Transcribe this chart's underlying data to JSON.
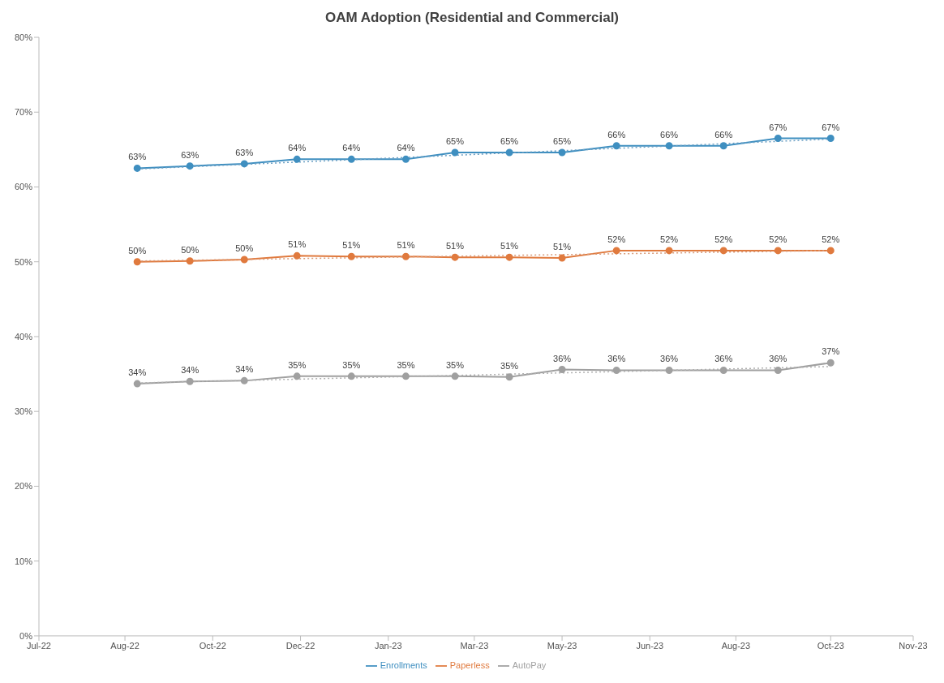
{
  "chart_data": {
    "type": "line",
    "title": "OAM Adoption (Residential and Commercial)",
    "x": [
      "2022-09-01",
      "2022-10-01",
      "2022-11-01",
      "2022-12-01",
      "2023-01-01",
      "2023-02-01",
      "2023-03-01",
      "2023-04-01",
      "2023-05-01",
      "2023-06-01",
      "2023-07-01",
      "2023-08-01",
      "2023-09-01",
      "2023-10-01"
    ],
    "series": [
      {
        "name": "Enrollments",
        "color": "#3f8fc0",
        "values": [
          62.5,
          62.8,
          63.1,
          63.7,
          63.7,
          63.7,
          64.6,
          64.6,
          64.6,
          65.5,
          65.5,
          65.5,
          66.5,
          66.5
        ],
        "value_labels": [
          "63%",
          "63%",
          "63%",
          "64%",
          "64%",
          "64%",
          "65%",
          "65%",
          "65%",
          "66%",
          "66%",
          "66%",
          "67%",
          "67%"
        ]
      },
      {
        "name": "Paperless",
        "color": "#e07a3e",
        "values": [
          50.0,
          50.1,
          50.3,
          50.8,
          50.7,
          50.7,
          50.6,
          50.6,
          50.5,
          51.5,
          51.5,
          51.5,
          51.5,
          51.5
        ],
        "value_labels": [
          "50%",
          "50%",
          "50%",
          "51%",
          "51%",
          "51%",
          "51%",
          "51%",
          "51%",
          "52%",
          "52%",
          "52%",
          "52%",
          "52%"
        ]
      },
      {
        "name": "AutoPay",
        "color": "#a0a0a0",
        "values": [
          33.7,
          34.0,
          34.1,
          34.7,
          34.7,
          34.7,
          34.7,
          34.6,
          35.6,
          35.5,
          35.5,
          35.5,
          35.5,
          36.5
        ],
        "value_labels": [
          "34%",
          "34%",
          "34%",
          "35%",
          "35%",
          "35%",
          "35%",
          "35%",
          "36%",
          "36%",
          "36%",
          "36%",
          "36%",
          "37%"
        ]
      },
      {
        "type": "line",
        "color": "#6a9fc4",
        "line_style": "dotted",
        "marker": "none",
        "x": [
          "2022-09-01",
          "2023-10-01"
        ],
        "values": [
          62.4,
          66.4
        ]
      },
      {
        "type": "line",
        "color": "#d99a78",
        "line_style": "dotted",
        "marker": "none",
        "x": [
          "2022-09-01",
          "2023-10-01"
        ],
        "values": [
          50.1,
          51.5
        ]
      },
      {
        "type": "line",
        "color": "#b0b0b0",
        "line_style": "dotted",
        "marker": "none",
        "x": [
          "2022-09-01",
          "2023-10-01"
        ],
        "values": [
          33.8,
          36.0
        ]
      }
    ],
    "xlim": [
      "2022-07-07",
      "2023-11-17"
    ],
    "xticks": [
      {
        "value": "2022-07-07",
        "label": "Jul-22"
      },
      {
        "value": "2022-08-25",
        "label": "Aug-22"
      },
      {
        "value": "2022-10-14",
        "label": "Oct-22"
      },
      {
        "value": "2022-12-03",
        "label": "Dec-22"
      },
      {
        "value": "2023-01-22",
        "label": "Jan-23"
      },
      {
        "value": "2023-03-12",
        "label": "Mar-23"
      },
      {
        "value": "2023-05-01",
        "label": "May-23"
      },
      {
        "value": "2023-06-20",
        "label": "Jun-23"
      },
      {
        "value": "2023-08-08",
        "label": "Aug-23"
      },
      {
        "value": "2023-10-01",
        "label": "Oct-23"
      },
      {
        "value": "2023-11-17",
        "label": "Nov-23"
      }
    ],
    "ylim": [
      0,
      80
    ],
    "yticks": [
      {
        "value": 0,
        "label": "0%"
      },
      {
        "value": 10,
        "label": "10%"
      },
      {
        "value": 20,
        "label": "20%"
      },
      {
        "value": 30,
        "label": "30%"
      },
      {
        "value": 40,
        "label": "40%"
      },
      {
        "value": 50,
        "label": "50%"
      },
      {
        "value": 60,
        "label": "60%"
      },
      {
        "value": 70,
        "label": "70%"
      },
      {
        "value": 80,
        "label": "80%"
      }
    ],
    "marker": "circle",
    "line_style": "solid",
    "grid": false,
    "legend": "bottom"
  }
}
